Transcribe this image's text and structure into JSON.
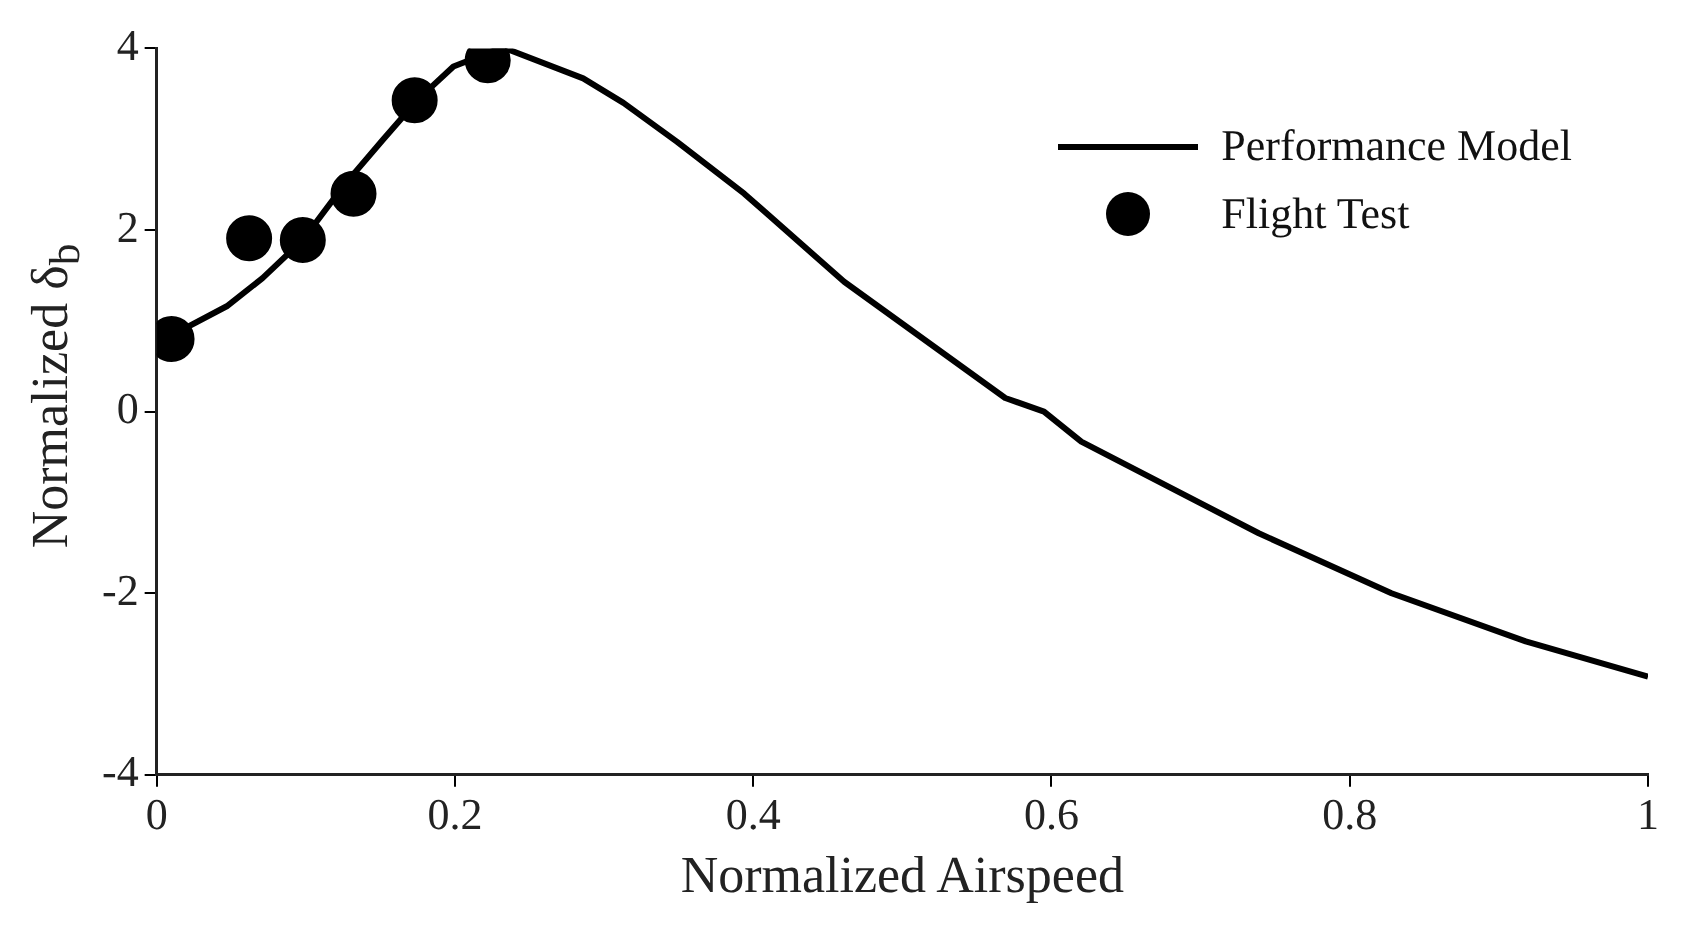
{
  "chart_data": {
    "type": "line",
    "xlabel": "Normalized Airspeed",
    "ylabel": "Normalized δ$_{b}$",
    "xlim": [
      0,
      1
    ],
    "xticks": [
      0,
      0.2,
      0.4,
      0.6,
      0.8,
      1
    ],
    "ylim": [
      -4,
      4
    ],
    "yticks": [
      -4,
      -2,
      0,
      2,
      4
    ],
    "grid": false,
    "legend": "top right",
    "series": [
      {
        "name": "Performance Model",
        "type": "line",
        "color": "#000000",
        "marker": "none",
        "line_style": "solid",
        "x": [
          0.01,
          0.047,
          0.071,
          0.098,
          0.125,
          0.152,
          0.176,
          0.199,
          0.23,
          0.237,
          0.286,
          0.313,
          0.349,
          0.394,
          0.461,
          0.569,
          0.595,
          0.62,
          0.739,
          0.828,
          0.918,
          1.0
        ],
        "values": [
          0.84,
          1.16,
          1.47,
          1.89,
          2.48,
          3.0,
          3.45,
          3.8,
          4.0,
          3.98,
          3.67,
          3.4,
          2.97,
          2.4,
          1.43,
          0.15,
          0.0,
          -0.33,
          -1.34,
          -2.0,
          -2.53,
          -2.92
        ]
      },
      {
        "name": "Flight Test",
        "type": "scatter",
        "color": "#000000",
        "marker": "circle",
        "x": [
          0.01,
          0.062,
          0.098,
          0.132,
          0.173,
          0.222
        ],
        "values": [
          0.8,
          1.91,
          1.89,
          2.4,
          3.43,
          3.87
        ]
      }
    ]
  }
}
